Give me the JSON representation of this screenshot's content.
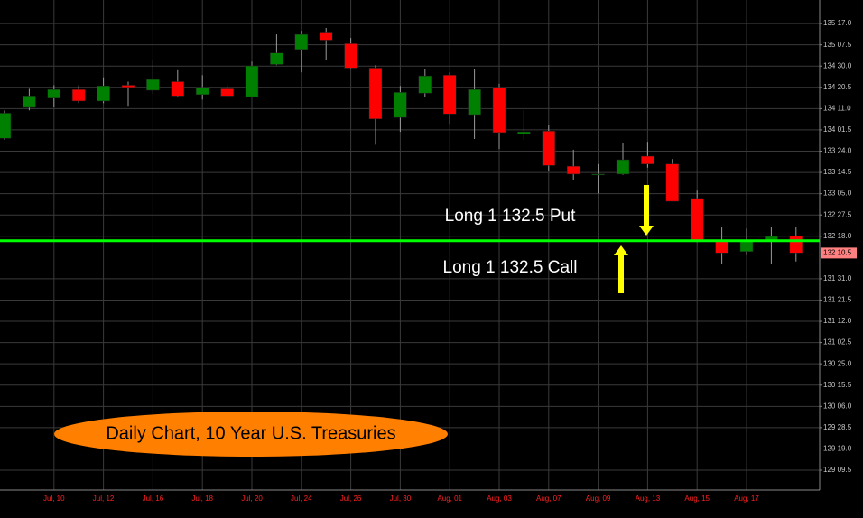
{
  "chart_data": {
    "type": "candlestick",
    "title": "Daily Chart, 10 Year U.S. Treasuries",
    "annotations": [
      "Long 1 132.5 Put",
      "Long 1 132.5 Call"
    ],
    "categories": [
      null,
      null,
      "Jul, 10",
      null,
      "Jul, 12",
      null,
      "Jul, 16",
      null,
      "Jul, 18",
      null,
      "Jul, 20",
      null,
      "Jul, 24",
      null,
      "Jul, 26",
      null,
      "Jul, 30",
      null,
      "Aug, 01",
      null,
      "Aug, 03",
      null,
      "Aug, 07",
      null,
      "Aug, 09",
      null,
      "Aug, 13",
      null,
      "Aug, 15",
      null,
      "Aug, 17",
      null,
      null
    ],
    "open": [
      133.93,
      134.36,
      134.49,
      134.61,
      134.45,
      134.67,
      134.6,
      134.72,
      134.54,
      134.62,
      134.51,
      134.96,
      135.17,
      135.4,
      135.25,
      134.91,
      134.22,
      134.56,
      134.81,
      134.26,
      134.64,
      133.99,
      134.03,
      133.54,
      133.42,
      133.43,
      133.68,
      133.57,
      133.09,
      132.51,
      132.35,
      132.51,
      132.57
    ],
    "high": [
      134.32,
      134.62,
      134.67,
      134.67,
      134.78,
      134.72,
      135.02,
      134.88,
      134.81,
      134.67,
      135.0,
      135.38,
      135.43,
      135.47,
      135.33,
      134.95,
      134.66,
      134.89,
      134.85,
      134.89,
      134.69,
      134.32,
      134.11,
      133.77,
      133.57,
      133.87,
      133.88,
      133.64,
      133.2,
      132.69,
      132.67,
      132.69,
      132.69
    ],
    "low": [
      133.91,
      134.32,
      134.36,
      134.42,
      134.42,
      134.37,
      134.55,
      134.51,
      134.47,
      134.5,
      134.51,
      134.95,
      134.85,
      135.02,
      134.9,
      133.84,
      134.02,
      134.5,
      134.13,
      133.92,
      133.78,
      133.91,
      133.47,
      133.35,
      133.16,
      133.42,
      133.52,
      133.05,
      132.48,
      132.17,
      132.3,
      132.17,
      132.21
    ],
    "close": [
      134.28,
      134.52,
      134.61,
      134.45,
      134.66,
      134.64,
      134.75,
      134.52,
      134.64,
      134.52,
      134.94,
      135.12,
      135.38,
      135.3,
      134.91,
      134.2,
      134.57,
      134.8,
      134.27,
      134.61,
      134.01,
      134.02,
      133.55,
      133.43,
      133.43,
      133.63,
      133.57,
      133.05,
      132.51,
      132.33,
      132.51,
      132.56,
      132.33
    ],
    "up_color": "#008000",
    "down_color": "#ff0000",
    "flat_color": "#909090",
    "ylim": [
      129.02,
      135.86
    ],
    "yticks": [
      {
        "value": 135.53125,
        "label": "135 17.0"
      },
      {
        "value": 135.234375,
        "label": "135 07.5"
      },
      {
        "value": 134.9375,
        "label": "134 30.0"
      },
      {
        "value": 134.640625,
        "label": "134 20.5"
      },
      {
        "value": 134.34375,
        "label": "134 11.0"
      },
      {
        "value": 134.046875,
        "label": "134 01.5"
      },
      {
        "value": 133.75,
        "label": "133 24.0"
      },
      {
        "value": 133.453125,
        "label": "133 14.5"
      },
      {
        "value": 133.15625,
        "label": "133 05.0"
      },
      {
        "value": 132.859375,
        "label": "132 27.5"
      },
      {
        "value": 132.5625,
        "label": "132 18.0"
      },
      {
        "value": 131.96875,
        "label": "131 31.0"
      },
      {
        "value": 131.671875,
        "label": "131 21.5"
      },
      {
        "value": 131.375,
        "label": "131 12.0"
      },
      {
        "value": 131.078125,
        "label": "131 02.5"
      },
      {
        "value": 130.78125,
        "label": "130 25.0"
      },
      {
        "value": 130.484375,
        "label": "130 15.5"
      },
      {
        "value": 130.1875,
        "label": "130 06.0"
      },
      {
        "value": 129.890625,
        "label": "129 28.5"
      },
      {
        "value": 129.59375,
        "label": "129 19.0"
      },
      {
        "value": 129.296875,
        "label": "129 09.5"
      }
    ],
    "last_price": {
      "value": 132.328125,
      "label": "132 10.5"
    },
    "level_line": {
      "value": 132.5,
      "color": "#00ff00"
    },
    "grid": true
  }
}
